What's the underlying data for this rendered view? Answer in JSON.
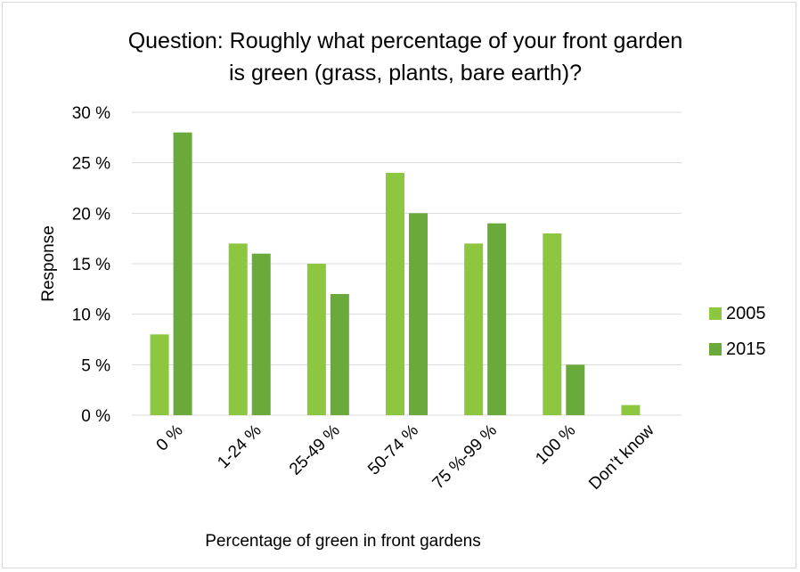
{
  "chart_data": {
    "type": "bar",
    "title_lines": [
      "Question:  Roughly what percentage of your front garden",
      "is green (grass, plants, bare earth)?"
    ],
    "xlabel": "Percentage of green in front gardens",
    "ylabel": "Response",
    "categories": [
      "0 %",
      "1-24 %",
      "25-49 %",
      "50-74 %",
      "75 %-99 %",
      "100 %",
      "Don’t know"
    ],
    "series": [
      {
        "name": "2005",
        "color": "#8dc63f",
        "values": [
          8,
          17,
          15,
          24,
          17,
          18,
          1
        ]
      },
      {
        "name": "2015",
        "color": "#6aaa3a",
        "values": [
          28,
          16,
          12,
          20,
          19,
          5,
          0
        ]
      }
    ],
    "ylim": [
      0,
      30
    ],
    "yticks": [
      0,
      5,
      10,
      15,
      20,
      25,
      30
    ],
    "ytick_labels": [
      "0 %",
      "5 %",
      "10 %",
      "15 %",
      "20 %",
      "25 %",
      "30 %"
    ],
    "grid": true,
    "legend_position": "right"
  }
}
